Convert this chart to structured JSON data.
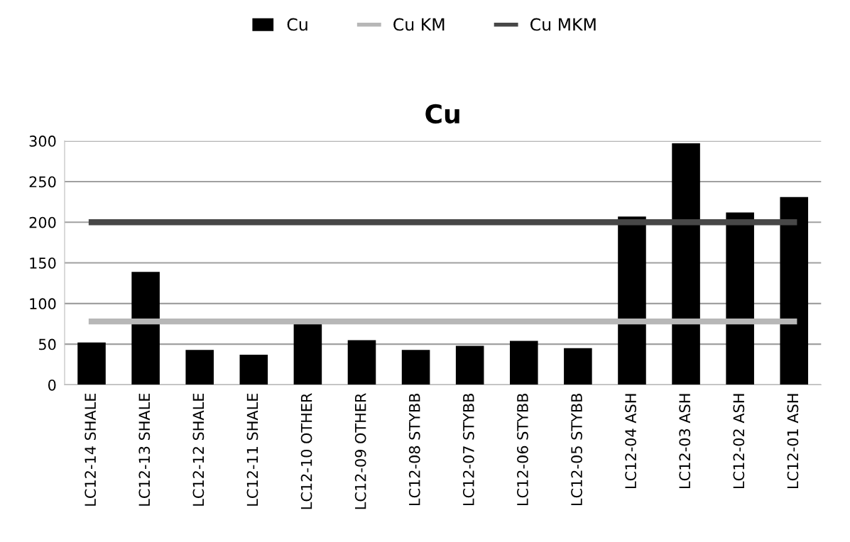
{
  "chart_data": {
    "type": "bar",
    "title": "Cu",
    "categories": [
      "LC12-14 SHALE",
      "LC12-13 SHALE",
      "LC12-12 SHALE",
      "LC12-11 SHALE",
      "LC12-10 OTHER",
      "LC12-09 OTHER",
      "LC12-08 STYBB",
      "LC12-07 STYBB",
      "LC12-06 STYBB",
      "LC12-05 STYBB",
      "LC12-04 ASH",
      "LC12-03 ASH",
      "LC12-02 ASH",
      "LC12-01 ASH"
    ],
    "series": [
      {
        "name": "Cu",
        "color": "#000000",
        "values": [
          52,
          139,
          43,
          37,
          75,
          55,
          43,
          48,
          54,
          45,
          207,
          297,
          212,
          231
        ]
      },
      {
        "name": "Cu KM",
        "type": "line",
        "color": "#b7b7b7",
        "values": [
          78,
          78,
          78,
          78,
          78,
          78,
          78,
          78,
          78,
          78,
          78,
          78,
          78,
          78
        ]
      },
      {
        "name": "Cu MKM",
        "type": "line",
        "color": "#474747",
        "values": [
          200,
          200,
          200,
          200,
          200,
          200,
          200,
          200,
          200,
          200,
          200,
          200,
          200,
          200
        ]
      }
    ],
    "ylim": [
      0,
      300
    ],
    "yticks": [
      0,
      50,
      100,
      150,
      200,
      250,
      300
    ],
    "grid": "y",
    "legend": "top"
  }
}
